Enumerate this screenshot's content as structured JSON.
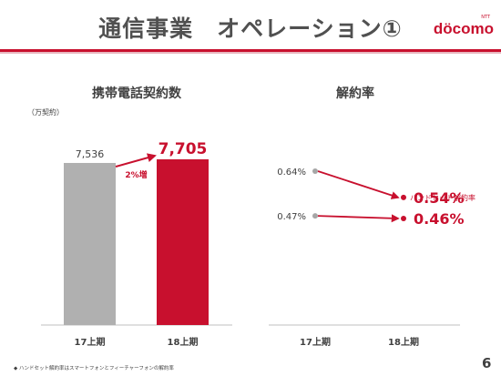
{
  "slide": {
    "title": "通信事業　オペレーション①",
    "logo_small": "NTT",
    "logo_text": "döcomo",
    "footnote": "◆ ハンドセット解約率はスマートフォンとフィーチャーフォンの解約率",
    "page_number": "6",
    "accent_color": "#c8102e",
    "gray_color": "#b0b0b0"
  },
  "chart_data": [
    {
      "type": "bar",
      "title": "携帯電話契約数",
      "unit_label": "（万契約）",
      "categories": [
        "17上期",
        "18上期"
      ],
      "values": [
        7536,
        7705
      ],
      "value_labels": [
        "7,536",
        "7,705"
      ],
      "growth_label": "2%増",
      "colors": [
        "#b0b0b0",
        "#c8102e"
      ]
    },
    {
      "type": "line",
      "title": "解約率",
      "categories": [
        "17上期",
        "18上期"
      ],
      "series": [
        {
          "values": [
            0.64,
            0.54
          ],
          "value_labels": [
            "0.64%",
            "0.54%"
          ]
        },
        {
          "name": "ハンドセット解約率",
          "values": [
            0.47,
            0.46
          ],
          "value_labels": [
            "0.47%",
            "0.46%"
          ]
        }
      ]
    }
  ]
}
